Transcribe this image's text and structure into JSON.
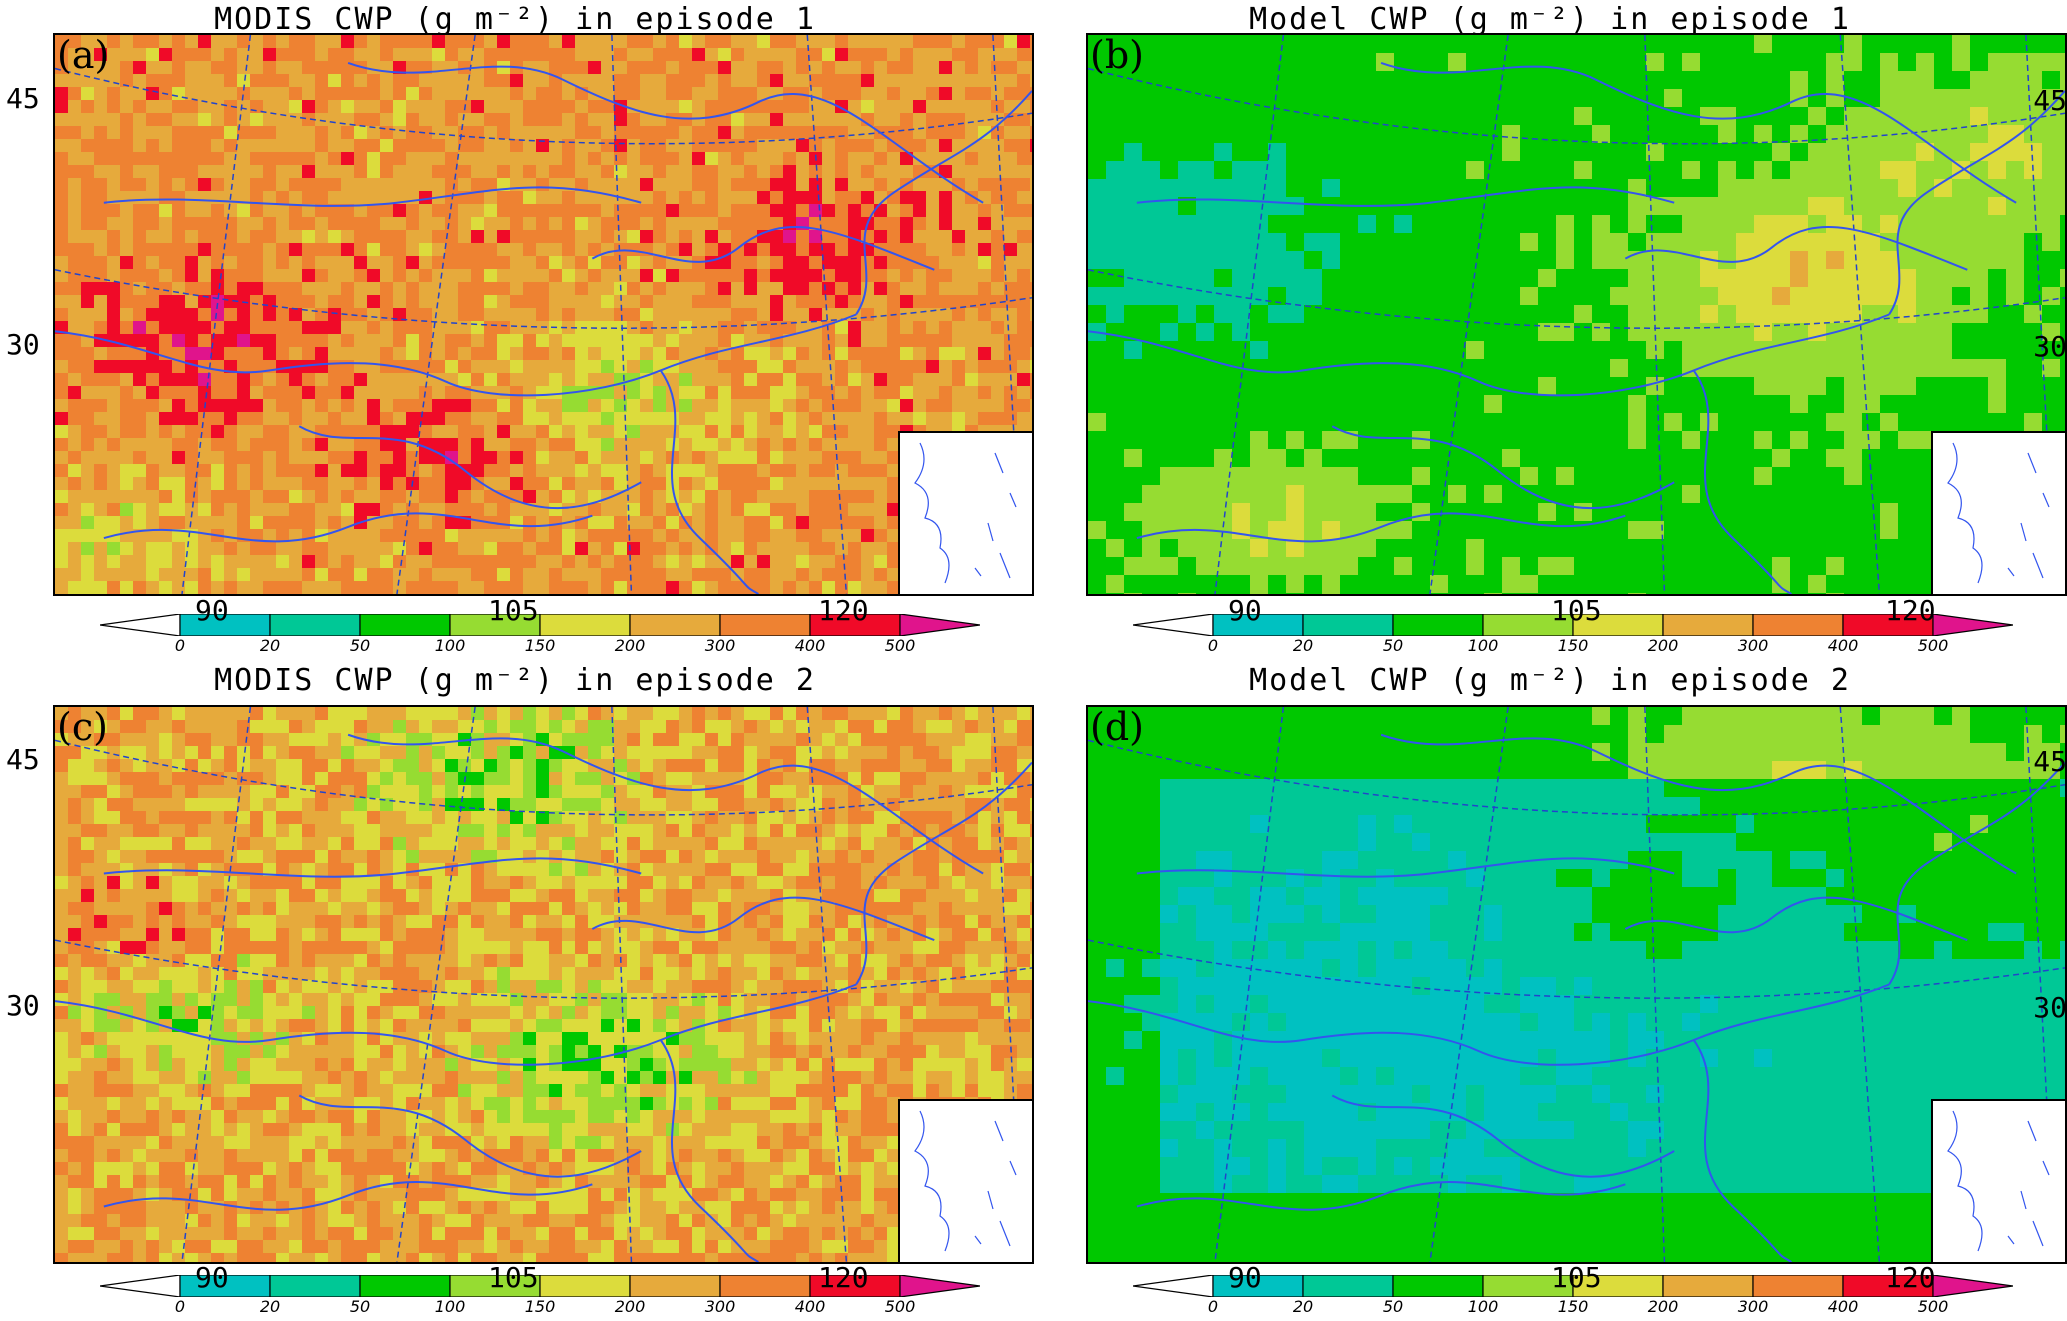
{
  "panels": [
    {
      "id": "a",
      "label": "(a)",
      "title": "MODIS CWP (g m⁻²) in episode 1",
      "mode": "modis1"
    },
    {
      "id": "b",
      "label": "(b)",
      "title": "Model CWP (g m⁻²) in episode 1",
      "mode": "model1"
    },
    {
      "id": "c",
      "label": "(c)",
      "title": "MODIS CWP (g m⁻²) in episode 2",
      "mode": "modis2"
    },
    {
      "id": "d",
      "label": "(d)",
      "title": "Model CWP (g m⁻²) in episode 2",
      "mode": "model2"
    }
  ],
  "latitude_labels": [
    "45",
    "30"
  ],
  "longitude_labels": [
    "90",
    "105",
    "120"
  ],
  "colorbar": {
    "ticks": [
      "0",
      "20",
      "50",
      "100",
      "150",
      "200",
      "300",
      "400",
      "500"
    ],
    "colors": [
      "#ffffff",
      "#00c1c1",
      "#00c896",
      "#00c800",
      "#96dc32",
      "#dcdc3c",
      "#e6aa3c",
      "#ee8232",
      "#f00a28",
      "#e0148c"
    ]
  },
  "colors": {
    "coastline": "#3355ee",
    "gridline": "#2244cc"
  }
}
